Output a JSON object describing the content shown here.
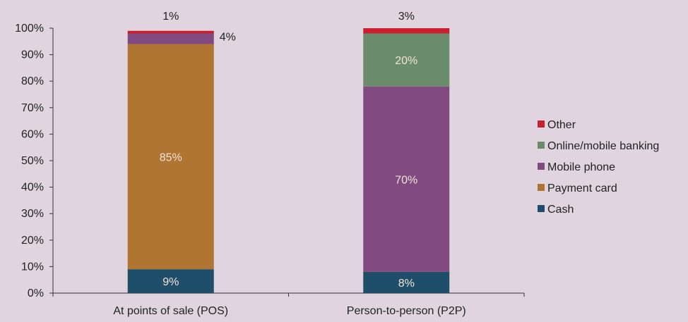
{
  "chart_data": {
    "type": "bar",
    "stacked": true,
    "categories": [
      "At points of sale (POS)",
      "Person-to-person (P2P)"
    ],
    "ylim": [
      0,
      100
    ],
    "yticks": [
      "0%",
      "10%",
      "20%",
      "30%",
      "40%",
      "50%",
      "60%",
      "70%",
      "80%",
      "90%",
      "100%"
    ],
    "legend_position": "right",
    "series": [
      {
        "name": "Cash",
        "color": "#1f4e6b",
        "values": [
          9,
          8
        ],
        "labels": [
          "9%",
          "8%"
        ]
      },
      {
        "name": "Payment card",
        "color": "#b07433",
        "values": [
          85,
          0
        ],
        "labels": [
          "85%",
          ""
        ]
      },
      {
        "name": "Mobile phone",
        "color": "#814a80",
        "values": [
          4,
          70
        ],
        "labels": [
          "4%",
          "70%"
        ]
      },
      {
        "name": "Online/mobile banking",
        "color": "#6b8c6b",
        "values": [
          0,
          20
        ],
        "labels": [
          "",
          "20%"
        ]
      },
      {
        "name": "Other",
        "color": "#c8202e",
        "values": [
          1,
          3
        ],
        "labels": [
          "1%",
          "3%"
        ]
      }
    ]
  }
}
